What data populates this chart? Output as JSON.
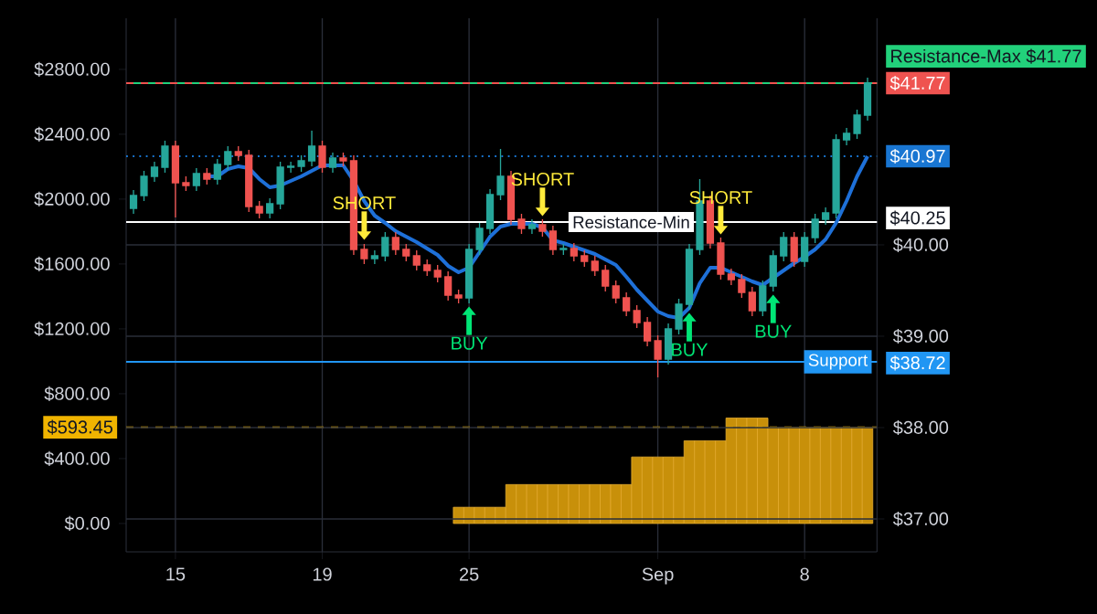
{
  "chart_data": {
    "type": "candlestick",
    "categories": [
      null,
      null,
      null,
      null,
      "15",
      null,
      null,
      null,
      null,
      null,
      null,
      null,
      null,
      null,
      null,
      null,
      null,
      null,
      "19",
      null,
      null,
      null,
      null,
      null,
      null,
      null,
      null,
      null,
      null,
      null,
      null,
      null,
      "25",
      null,
      null,
      null,
      null,
      null,
      null,
      null,
      null,
      null,
      null,
      null,
      null,
      null,
      null,
      null,
      null,
      null,
      "Sep",
      null,
      null,
      null,
      null,
      null,
      null,
      null,
      null,
      null,
      null,
      null,
      null,
      null,
      "8",
      null,
      null,
      null,
      null,
      null,
      null
    ],
    "ylim": [
      -175,
      3115
    ],
    "y2lim": [
      36.64,
      42.48
    ],
    "yticks": [
      {
        "value": 0,
        "label": "$0.00"
      },
      {
        "value": 400,
        "label": "$400.00"
      },
      {
        "value": 800,
        "label": "$800.00"
      },
      {
        "value": 1200,
        "label": "$1200.00"
      },
      {
        "value": 1600,
        "label": "$1600.00"
      },
      {
        "value": 2000,
        "label": "$2000.00"
      },
      {
        "value": 2400,
        "label": "$2400.00"
      },
      {
        "value": 2800,
        "label": "$2800.00"
      }
    ],
    "y2ticks": [
      {
        "value": 37,
        "label": "$37.00"
      },
      {
        "value": 38,
        "label": "$38.00"
      },
      {
        "value": 39,
        "label": "$39.00"
      },
      {
        "value": 40,
        "label": "$40.00"
      },
      {
        "value": 41.77,
        "label": "$41.77"
      },
      {
        "value": 40.97,
        "label": "$40.97"
      },
      {
        "value": 40.25,
        "label": "$40.25"
      },
      {
        "value": 38.72,
        "label": "$38.72"
      }
    ],
    "grid": true,
    "series": [
      {
        "type": "bar",
        "axis": "y",
        "color": "#c8900a",
        "values": [
          null,
          null,
          null,
          null,
          null,
          null,
          null,
          null,
          null,
          null,
          null,
          null,
          null,
          null,
          null,
          null,
          null,
          null,
          null,
          null,
          null,
          null,
          null,
          null,
          null,
          null,
          null,
          null,
          null,
          null,
          null,
          100,
          100,
          100,
          100,
          100,
          240,
          240,
          240,
          240,
          240,
          240,
          240,
          240,
          240,
          240,
          240,
          240,
          410,
          410,
          410,
          410,
          410,
          510,
          510,
          510,
          510,
          650,
          650,
          650,
          650,
          593.45,
          593.45,
          593.45,
          593.45,
          593.45,
          593.45,
          593.45,
          593.45,
          593.45,
          593.45
        ]
      },
      {
        "axis": "y2",
        "ohlc": [
          [
            40.4,
            40.6,
            40.34,
            40.54
          ],
          [
            40.54,
            40.81,
            40.48,
            40.75
          ],
          [
            40.75,
            40.91,
            40.69,
            40.85
          ],
          [
            40.85,
            41.14,
            40.79,
            41.08
          ],
          [
            41.08,
            41.14,
            40.3,
            40.68
          ],
          [
            40.68,
            40.75,
            40.59,
            40.65
          ],
          [
            40.65,
            40.84,
            40.59,
            40.78
          ],
          [
            40.78,
            40.84,
            40.66,
            40.72
          ],
          [
            40.72,
            40.94,
            40.66,
            40.88
          ],
          [
            40.88,
            41.08,
            40.82,
            41.02
          ],
          [
            41.02,
            41.08,
            40.92,
            40.98
          ],
          [
            40.98,
            41.04,
            40.36,
            40.42
          ],
          [
            40.42,
            40.48,
            40.29,
            40.35
          ],
          [
            40.35,
            40.51,
            40.29,
            40.45
          ],
          [
            40.45,
            40.91,
            40.39,
            40.85
          ],
          [
            40.85,
            40.91,
            40.79,
            40.86
          ],
          [
            40.86,
            40.98,
            40.8,
            40.92
          ],
          [
            40.92,
            41.25,
            40.86,
            41.08
          ],
          [
            41.08,
            41.14,
            40.79,
            40.85
          ],
          [
            40.85,
            41.01,
            40.79,
            40.95
          ],
          [
            40.95,
            41.01,
            40.86,
            40.92
          ],
          [
            40.92,
            40.98,
            39.89,
            39.95
          ],
          [
            39.95,
            40.01,
            39.79,
            39.85
          ],
          [
            39.85,
            39.94,
            39.79,
            39.88
          ],
          [
            39.88,
            40.14,
            39.82,
            40.08
          ],
          [
            40.08,
            40.14,
            39.89,
            39.95
          ],
          [
            39.95,
            40.01,
            39.82,
            39.88
          ],
          [
            39.88,
            39.94,
            39.72,
            39.78
          ],
          [
            39.78,
            39.84,
            39.66,
            39.72
          ],
          [
            39.72,
            39.78,
            39.59,
            39.65
          ],
          [
            39.65,
            39.71,
            39.39,
            39.45
          ],
          [
            39.45,
            39.51,
            39.36,
            39.42
          ],
          [
            39.42,
            40.01,
            39.36,
            39.95
          ],
          [
            39.95,
            40.24,
            39.89,
            40.18
          ],
          [
            40.18,
            40.61,
            40.12,
            40.55
          ],
          [
            40.55,
            41.05,
            40.49,
            40.75
          ],
          [
            40.75,
            40.81,
            40.22,
            40.28
          ],
          [
            40.28,
            40.34,
            40.12,
            40.18
          ],
          [
            40.18,
            40.28,
            40.12,
            40.22
          ],
          [
            40.22,
            40.28,
            40.09,
            40.15
          ],
          [
            40.15,
            40.21,
            39.89,
            39.95
          ],
          [
            39.95,
            40.01,
            39.89,
            39.96
          ],
          [
            39.96,
            40.02,
            39.82,
            39.88
          ],
          [
            39.88,
            39.94,
            39.76,
            39.82
          ],
          [
            39.82,
            39.88,
            39.66,
            39.72
          ],
          [
            39.72,
            39.78,
            39.49,
            39.55
          ],
          [
            39.55,
            39.61,
            39.36,
            39.42
          ],
          [
            39.42,
            39.48,
            39.22,
            39.28
          ],
          [
            39.28,
            39.34,
            39.09,
            39.15
          ],
          [
            39.15,
            39.21,
            38.89,
            38.95
          ],
          [
            38.95,
            39.01,
            38.55,
            38.75
          ],
          [
            38.75,
            39.14,
            38.69,
            39.08
          ],
          [
            39.08,
            39.41,
            39.02,
            39.35
          ],
          [
            39.35,
            40.01,
            39.29,
            39.95
          ],
          [
            39.95,
            40.72,
            39.89,
            40.48
          ],
          [
            40.48,
            40.54,
            39.96,
            40.02
          ],
          [
            40.02,
            40.08,
            39.62,
            39.68
          ],
          [
            39.68,
            39.74,
            39.56,
            39.62
          ],
          [
            39.62,
            39.68,
            39.42,
            39.48
          ],
          [
            39.48,
            39.54,
            39.22,
            39.28
          ],
          [
            39.28,
            39.61,
            39.22,
            39.55
          ],
          [
            39.55,
            39.94,
            39.49,
            39.88
          ],
          [
            39.88,
            40.14,
            39.82,
            40.08
          ],
          [
            40.08,
            40.14,
            39.76,
            39.82
          ],
          [
            39.82,
            40.14,
            39.76,
            40.08
          ],
          [
            40.08,
            40.34,
            40.02,
            40.28
          ],
          [
            40.28,
            40.41,
            40.22,
            40.35
          ],
          [
            40.35,
            41.21,
            40.29,
            41.15
          ],
          [
            41.15,
            41.28,
            41.09,
            41.22
          ],
          [
            41.22,
            41.48,
            41.16,
            41.42
          ],
          [
            41.42,
            41.83,
            41.36,
            41.77
          ]
        ],
        "colors": [
          "#26a69a",
          "#26a69a",
          "#26a69a",
          "#26a69a",
          "#ef5350",
          "#ef5350",
          "#26a69a",
          "#ef5350",
          "#26a69a",
          "#26a69a",
          "#ef5350",
          "#ef5350",
          "#ef5350",
          "#26a69a",
          "#26a69a",
          "#26a69a",
          "#26a69a",
          "#26a69a",
          "#ef5350",
          "#26a69a",
          "#ef5350",
          "#ef5350",
          "#ef5350",
          "#26a69a",
          "#26a69a",
          "#ef5350",
          "#ef5350",
          "#ef5350",
          "#ef5350",
          "#ef5350",
          "#ef5350",
          "#ef5350",
          "#26a69a",
          "#26a69a",
          "#26a69a",
          "#26a69a",
          "#ef5350",
          "#ef5350",
          "#26a69a",
          "#ef5350",
          "#ef5350",
          "#26a69a",
          "#ef5350",
          "#ef5350",
          "#ef5350",
          "#ef5350",
          "#ef5350",
          "#ef5350",
          "#ef5350",
          "#ef5350",
          "#ef5350",
          "#26a69a",
          "#26a69a",
          "#26a69a",
          "#26a69a",
          "#ef5350",
          "#ef5350",
          "#ef5350",
          "#ef5350",
          "#ef5350",
          "#26a69a",
          "#26a69a",
          "#26a69a",
          "#ef5350",
          "#26a69a",
          "#26a69a",
          "#26a69a",
          "#26a69a",
          "#26a69a",
          "#26a69a",
          "#26a69a"
        ]
      },
      {
        "type": "line",
        "axis": "y2",
        "color": "#1e70d8",
        "values": [
          null,
          null,
          null,
          null,
          null,
          null,
          null,
          40.75,
          40.75,
          40.83,
          40.86,
          40.84,
          40.72,
          40.63,
          40.65,
          40.7,
          40.75,
          40.81,
          40.87,
          40.87,
          40.87,
          40.7,
          40.48,
          40.32,
          40.24,
          40.15,
          40.09,
          40.03,
          39.96,
          39.89,
          39.77,
          39.7,
          39.75,
          39.92,
          40.09,
          40.2,
          40.23,
          40.23,
          40.23,
          40.19,
          40.05,
          40.02,
          39.98,
          39.94,
          39.9,
          39.84,
          39.78,
          39.65,
          39.51,
          39.39,
          39.27,
          39.22,
          39.2,
          39.31,
          39.58,
          39.75,
          39.75,
          39.7,
          39.65,
          39.6,
          39.56,
          39.64,
          39.72,
          39.8,
          39.87,
          39.95,
          40.06,
          40.24,
          40.48,
          40.75,
          40.97
        ]
      },
      {
        "type": "scatter",
        "axis": "y2",
        "name": "SHORT",
        "color": "#ffeb3b",
        "values": [
          null,
          null,
          null,
          null,
          null,
          null,
          null,
          null,
          null,
          null,
          null,
          null,
          null,
          null,
          null,
          null,
          null,
          null,
          null,
          null,
          null,
          null,
          40.1,
          null,
          null,
          null,
          null,
          null,
          null,
          null,
          null,
          null,
          null,
          null,
          null,
          null,
          null,
          null,
          null,
          40.36,
          null,
          null,
          null,
          null,
          null,
          null,
          null,
          null,
          null,
          null,
          null,
          null,
          null,
          null,
          null,
          null,
          40.16,
          null,
          null,
          null,
          null,
          null,
          null,
          null,
          null,
          null,
          null,
          null,
          null,
          null,
          null
        ]
      },
      {
        "type": "scatter",
        "axis": "y2",
        "name": "BUY",
        "color": "#00e676",
        "values": [
          null,
          null,
          null,
          null,
          null,
          null,
          null,
          null,
          null,
          null,
          null,
          null,
          null,
          null,
          null,
          null,
          null,
          null,
          null,
          null,
          null,
          null,
          null,
          null,
          null,
          null,
          null,
          null,
          null,
          null,
          null,
          null,
          39.28,
          null,
          null,
          null,
          null,
          null,
          null,
          null,
          null,
          null,
          null,
          null,
          null,
          null,
          null,
          null,
          null,
          null,
          null,
          null,
          null,
          39.21,
          null,
          null,
          null,
          null,
          null,
          null,
          null,
          39.41,
          null,
          null,
          null,
          null,
          null,
          null,
          null,
          null,
          null
        ]
      }
    ],
    "ref_lines": [
      {
        "axis": "y2",
        "value": 41.77,
        "label": "Resistance-Max $41.77",
        "color": "#22d17b"
      },
      {
        "axis": "y2",
        "value": 41.77,
        "color": "#ef5350",
        "line_style": "dashed"
      },
      {
        "axis": "y2",
        "value": 40.97,
        "color": "#1976d2",
        "line_style": "dotted"
      },
      {
        "axis": "y2",
        "value": 40.25,
        "label": "Resistance-Min",
        "color": "#ffffff"
      },
      {
        "axis": "y2",
        "value": 38.72,
        "label": "Support",
        "color": "#2196f3"
      },
      {
        "axis": "y",
        "value": 593.45,
        "label": "$593.45",
        "color": "#f0b400",
        "line_style": "dashed"
      }
    ]
  }
}
